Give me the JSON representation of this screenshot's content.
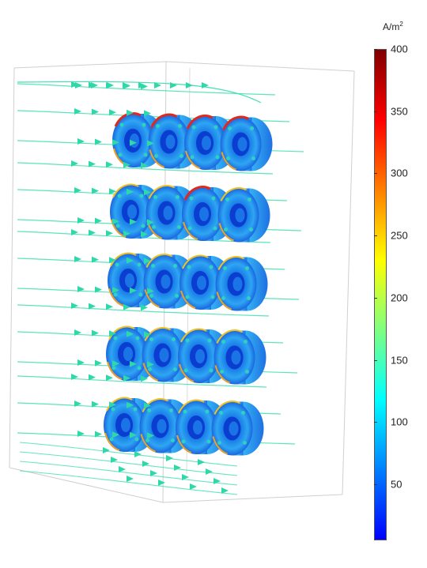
{
  "colorbar": {
    "unit_base": "A/m",
    "unit_exp": "2",
    "ticks": [
      "400",
      "350",
      "300",
      "250",
      "200",
      "150",
      "100",
      "50"
    ],
    "tick_values": [
      400,
      350,
      300,
      250,
      200,
      150,
      100,
      50
    ],
    "range": [
      5,
      400
    ],
    "colors": [
      "#0000ff",
      "#0080ff",
      "#00ffff",
      "#80ff80",
      "#ffff00",
      "#ff8000",
      "#ff0000",
      "#800000"
    ]
  },
  "scene": {
    "grid_rows": 5,
    "grid_cols": 4,
    "coil_ring_color": "#1f6fe0",
    "coil_hot_color": "#e0281c",
    "streamline_color": "#3de0b0",
    "arrow_color": "#2fd8a8",
    "box_edge_color": "#c8c8c8"
  }
}
